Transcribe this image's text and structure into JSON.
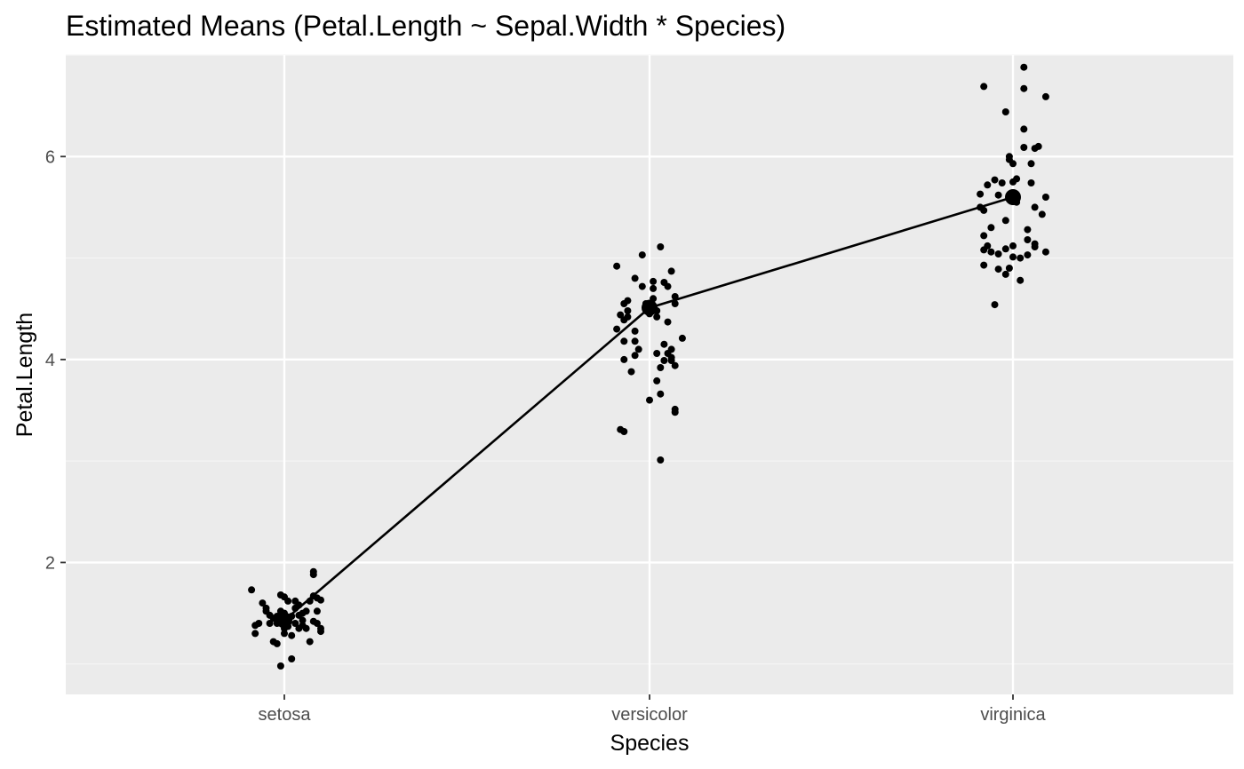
{
  "chart_data": {
    "type": "scatter",
    "title": "Estimated Means (Petal.Length ~ Sepal.Width * Species)",
    "xlabel": "Species",
    "ylabel": "Petal.Length",
    "categories": [
      "setosa",
      "versicolor",
      "virginica"
    ],
    "ylim": [
      0.7,
      7.0
    ],
    "y_ticks": [
      2,
      4,
      6
    ],
    "grid": true,
    "legend": "none",
    "colors": {
      "panel_background": "#ebebeb",
      "grid_major": "#ffffff",
      "grid_minor": "#f5f5f5",
      "points": "#000000",
      "line": "#000000",
      "tick_label": "#4d4d4d"
    },
    "estimated_means": [
      {
        "category": "setosa",
        "mean": 1.43
      },
      {
        "category": "versicolor",
        "mean": 4.51
      },
      {
        "category": "virginica",
        "mean": 5.6
      }
    ],
    "observations": [
      {
        "category": "setosa",
        "points": [
          [
            -0.09,
            1.73
          ],
          [
            -0.08,
            1.38
          ],
          [
            -0.08,
            1.3
          ],
          [
            -0.07,
            1.4
          ],
          [
            -0.06,
            1.6
          ],
          [
            -0.05,
            1.55
          ],
          [
            -0.05,
            1.52
          ],
          [
            -0.04,
            1.48
          ],
          [
            -0.04,
            1.4
          ],
          [
            -0.03,
            1.22
          ],
          [
            -0.03,
            1.45
          ],
          [
            -0.02,
            1.47
          ],
          [
            -0.02,
            1.4
          ],
          [
            -0.01,
            1.52
          ],
          [
            -0.01,
            1.68
          ],
          [
            -0.01,
            0.98
          ],
          [
            0.0,
            1.66
          ],
          [
            0.0,
            1.5
          ],
          [
            0.0,
            1.35
          ],
          [
            0.0,
            1.3
          ],
          [
            0.01,
            1.43
          ],
          [
            0.01,
            1.37
          ],
          [
            0.01,
            1.62
          ],
          [
            0.02,
            1.28
          ],
          [
            0.02,
            1.05
          ],
          [
            0.02,
            1.47
          ],
          [
            0.03,
            1.4
          ],
          [
            0.03,
            1.55
          ],
          [
            0.03,
            1.62
          ],
          [
            0.04,
            1.35
          ],
          [
            0.04,
            1.48
          ],
          [
            0.04,
            1.58
          ],
          [
            0.05,
            1.43
          ],
          [
            0.05,
            1.38
          ],
          [
            0.05,
            1.5
          ],
          [
            0.06,
            1.52
          ],
          [
            0.06,
            1.35
          ],
          [
            0.07,
            1.22
          ],
          [
            0.07,
            1.62
          ],
          [
            0.08,
            1.42
          ],
          [
            0.08,
            1.88
          ],
          [
            0.08,
            1.91
          ],
          [
            0.09,
            1.65
          ],
          [
            0.09,
            1.52
          ],
          [
            0.1,
            1.35
          ],
          [
            0.1,
            1.32
          ],
          [
            0.1,
            1.63
          ],
          [
            0.08,
            1.67
          ],
          [
            -0.02,
            1.2
          ],
          [
            0.09,
            1.4
          ]
        ]
      },
      {
        "category": "versicolor",
        "points": [
          [
            -0.09,
            4.92
          ],
          [
            -0.09,
            4.3
          ],
          [
            -0.08,
            4.44
          ],
          [
            -0.08,
            3.31
          ],
          [
            -0.07,
            3.29
          ],
          [
            -0.07,
            4.55
          ],
          [
            -0.07,
            4.18
          ],
          [
            -0.07,
            4.39
          ],
          [
            -0.07,
            4.0
          ],
          [
            -0.06,
            4.58
          ],
          [
            -0.06,
            4.48
          ],
          [
            -0.06,
            4.42
          ],
          [
            -0.05,
            3.88
          ],
          [
            -0.04,
            4.8
          ],
          [
            -0.04,
            4.28
          ],
          [
            -0.04,
            4.04
          ],
          [
            -0.04,
            4.18
          ],
          [
            -0.03,
            4.1
          ],
          [
            -0.02,
            4.72
          ],
          [
            -0.02,
            5.03
          ],
          [
            -0.01,
            4.55
          ],
          [
            0.0,
            4.5
          ],
          [
            0.0,
            4.45
          ],
          [
            0.0,
            3.6
          ],
          [
            0.01,
            4.77
          ],
          [
            0.01,
            4.7
          ],
          [
            0.01,
            4.6
          ],
          [
            0.02,
            4.48
          ],
          [
            0.02,
            3.79
          ],
          [
            0.02,
            4.42
          ],
          [
            0.02,
            4.06
          ],
          [
            0.03,
            3.01
          ],
          [
            0.03,
            3.92
          ],
          [
            0.03,
            3.66
          ],
          [
            0.03,
            5.11
          ],
          [
            0.04,
            4.76
          ],
          [
            0.04,
            4.15
          ],
          [
            0.04,
            3.99
          ],
          [
            0.05,
            4.72
          ],
          [
            0.05,
            4.37
          ],
          [
            0.05,
            4.06
          ],
          [
            0.06,
            4.87
          ],
          [
            0.06,
            4.1
          ],
          [
            0.06,
            4.02
          ],
          [
            0.06,
            3.99
          ],
          [
            0.07,
            4.55
          ],
          [
            0.07,
            4.62
          ],
          [
            0.07,
            3.94
          ],
          [
            0.07,
            3.51
          ],
          [
            0.07,
            3.48
          ],
          [
            0.09,
            4.21
          ]
        ]
      },
      {
        "category": "virginica",
        "points": [
          [
            -0.09,
            5.5
          ],
          [
            -0.09,
            5.63
          ],
          [
            -0.08,
            5.47
          ],
          [
            -0.08,
            6.69
          ],
          [
            -0.08,
            4.93
          ],
          [
            -0.08,
            5.08
          ],
          [
            -0.08,
            5.22
          ],
          [
            -0.07,
            5.12
          ],
          [
            -0.07,
            5.72
          ],
          [
            -0.06,
            5.3
          ],
          [
            -0.06,
            5.06
          ],
          [
            -0.05,
            5.77
          ],
          [
            -0.05,
            4.54
          ],
          [
            -0.04,
            4.89
          ],
          [
            -0.04,
            5.62
          ],
          [
            -0.04,
            5.04
          ],
          [
            -0.03,
            5.74
          ],
          [
            -0.02,
            6.44
          ],
          [
            -0.02,
            5.37
          ],
          [
            -0.02,
            4.84
          ],
          [
            -0.02,
            5.09
          ],
          [
            -0.01,
            6.0
          ],
          [
            -0.01,
            5.97
          ],
          [
            -0.01,
            4.9
          ],
          [
            0.0,
            5.93
          ],
          [
            0.0,
            5.75
          ],
          [
            0.0,
            5.12
          ],
          [
            0.0,
            5.01
          ],
          [
            0.01,
            5.62
          ],
          [
            0.01,
            5.55
          ],
          [
            0.01,
            5.78
          ],
          [
            0.02,
            5.0
          ],
          [
            0.02,
            4.78
          ],
          [
            0.03,
            6.88
          ],
          [
            0.03,
            6.27
          ],
          [
            0.03,
            6.67
          ],
          [
            0.03,
            6.09
          ],
          [
            0.04,
            5.03
          ],
          [
            0.04,
            5.28
          ],
          [
            0.04,
            5.18
          ],
          [
            0.05,
            5.74
          ],
          [
            0.05,
            5.93
          ],
          [
            0.06,
            5.5
          ],
          [
            0.06,
            5.14
          ],
          [
            0.06,
            5.11
          ],
          [
            0.06,
            6.08
          ],
          [
            0.07,
            6.1
          ],
          [
            0.08,
            5.43
          ],
          [
            0.09,
            6.59
          ],
          [
            0.09,
            5.6
          ],
          [
            0.09,
            5.06
          ]
        ]
      }
    ]
  }
}
